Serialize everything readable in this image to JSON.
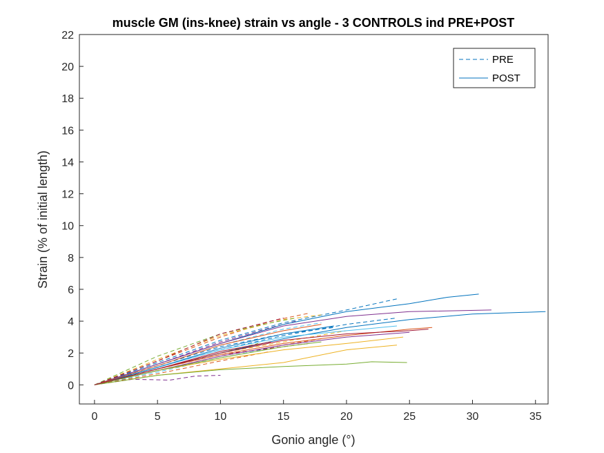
{
  "chart_data": {
    "type": "line",
    "title": "muscle GM (ins-knee) strain vs angle - 3 CONTROLS ind PRE+POST",
    "xlabel": "Gonio angle (°)",
    "ylabel": "Strain (% of initial length)",
    "xlim": [
      -1.2,
      36
    ],
    "ylim": [
      -1.2,
      22
    ],
    "xticks": [
      0,
      5,
      10,
      15,
      20,
      25,
      30,
      35
    ],
    "yticks": [
      0,
      2,
      4,
      6,
      8,
      10,
      12,
      14,
      16,
      18,
      20,
      22
    ],
    "grid": false,
    "legend": {
      "placement": "top-right",
      "entries": [
        {
          "label": "PRE",
          "style": "dashed",
          "color": "#0072BD"
        },
        {
          "label": "POST",
          "style": "solid",
          "color": "#0072BD"
        }
      ]
    },
    "series": [
      {
        "style": "dashed",
        "color": "#0072BD",
        "points": [
          [
            0,
            0
          ],
          [
            5,
            1.4
          ],
          [
            10,
            2.8
          ],
          [
            15,
            3.9
          ],
          [
            20,
            4.7
          ],
          [
            24,
            5.4
          ]
        ]
      },
      {
        "style": "dashed",
        "color": "#D95319",
        "points": [
          [
            0,
            0
          ],
          [
            5,
            1.5
          ],
          [
            10,
            3.0
          ],
          [
            14,
            4.0
          ],
          [
            17,
            4.5
          ]
        ]
      },
      {
        "style": "dashed",
        "color": "#EDB120",
        "points": [
          [
            0,
            0
          ],
          [
            5,
            1.6
          ],
          [
            10,
            3.1
          ],
          [
            15,
            4.1
          ],
          [
            18,
            4.4
          ]
        ]
      },
      {
        "style": "dashed",
        "color": "#7E2F8E",
        "points": [
          [
            0,
            0
          ],
          [
            5,
            1.3
          ],
          [
            10,
            2.7
          ],
          [
            14,
            3.6
          ],
          [
            16,
            4.0
          ]
        ]
      },
      {
        "style": "dashed",
        "color": "#77AC30",
        "points": [
          [
            0,
            0
          ],
          [
            5,
            1.8
          ],
          [
            10,
            3.2
          ],
          [
            14,
            3.9
          ],
          [
            16,
            4.2
          ]
        ]
      },
      {
        "style": "dashed",
        "color": "#4DBEEE",
        "points": [
          [
            0,
            0
          ],
          [
            5,
            1.2
          ],
          [
            10,
            2.5
          ],
          [
            15,
            3.5
          ],
          [
            18,
            3.9
          ]
        ]
      },
      {
        "style": "dashed",
        "color": "#A2142F",
        "points": [
          [
            0,
            0
          ],
          [
            5,
            1.5
          ],
          [
            10,
            3.2
          ],
          [
            13,
            3.8
          ],
          [
            15,
            4.2
          ]
        ]
      },
      {
        "style": "dashed",
        "color": "#0072BD",
        "points": [
          [
            0,
            0
          ],
          [
            5,
            1.1
          ],
          [
            10,
            2.2
          ],
          [
            15,
            3.1
          ],
          [
            20,
            3.8
          ],
          [
            24,
            4.2
          ]
        ]
      },
      {
        "style": "dashed",
        "color": "#D95319",
        "points": [
          [
            0,
            0
          ],
          [
            5,
            0.9
          ],
          [
            10,
            1.8
          ],
          [
            15,
            2.5
          ],
          [
            18,
            2.9
          ]
        ]
      },
      {
        "style": "dashed",
        "color": "#EDB120",
        "points": [
          [
            0,
            0
          ],
          [
            5,
            1.0
          ],
          [
            10,
            2.0
          ],
          [
            15,
            2.7
          ],
          [
            20,
            3.4
          ]
        ]
      },
      {
        "style": "dashed",
        "color": "#7E2F8E",
        "points": [
          [
            0,
            0
          ],
          [
            3,
            0.35
          ],
          [
            6,
            0.3
          ],
          [
            8,
            0.55
          ],
          [
            10,
            0.6
          ]
        ]
      },
      {
        "style": "dashed",
        "color": "#77AC30",
        "points": [
          [
            0,
            0
          ],
          [
            5,
            1.0
          ],
          [
            10,
            2.0
          ],
          [
            13,
            2.6
          ]
        ]
      },
      {
        "style": "dashed",
        "color": "#4DBEEE",
        "points": [
          [
            0,
            0
          ],
          [
            5,
            0.8
          ],
          [
            10,
            1.7
          ],
          [
            14,
            2.3
          ]
        ]
      },
      {
        "style": "dashed",
        "color": "#A2142F",
        "points": [
          [
            0,
            0
          ],
          [
            5,
            1.0
          ],
          [
            10,
            1.9
          ],
          [
            15,
            2.4
          ],
          [
            17,
            2.6
          ]
        ]
      },
      {
        "style": "dashed",
        "color": "#0072BD",
        "points": [
          [
            0,
            0
          ],
          [
            5,
            1.2
          ],
          [
            10,
            2.4
          ],
          [
            15,
            3.2
          ],
          [
            19,
            3.6
          ]
        ]
      },
      {
        "style": "dashed",
        "color": "#D95319",
        "points": [
          [
            0,
            0
          ],
          [
            5,
            0.7
          ],
          [
            10,
            1.5
          ],
          [
            14,
            2.1
          ]
        ]
      },
      {
        "style": "solid",
        "color": "#0072BD",
        "points": [
          [
            0,
            0
          ],
          [
            5,
            1.3
          ],
          [
            10,
            2.6
          ],
          [
            15,
            3.8
          ],
          [
            20,
            4.6
          ],
          [
            25,
            5.1
          ],
          [
            28,
            5.5
          ],
          [
            30.5,
            5.7
          ]
        ]
      },
      {
        "style": "solid",
        "color": "#0072BD",
        "points": [
          [
            0,
            0
          ],
          [
            5,
            1.0
          ],
          [
            10,
            2.0
          ],
          [
            15,
            2.9
          ],
          [
            20,
            3.6
          ],
          [
            25,
            4.1
          ],
          [
            30,
            4.45
          ],
          [
            35.8,
            4.6
          ]
        ]
      },
      {
        "style": "solid",
        "color": "#7E2F8E",
        "points": [
          [
            0,
            0
          ],
          [
            5,
            1.3
          ],
          [
            10,
            2.6
          ],
          [
            15,
            3.7
          ],
          [
            20,
            4.3
          ],
          [
            25,
            4.6
          ],
          [
            31.5,
            4.7
          ]
        ]
      },
      {
        "style": "solid",
        "color": "#D95319",
        "points": [
          [
            0,
            0
          ],
          [
            5,
            1.0
          ],
          [
            10,
            1.9
          ],
          [
            15,
            2.6
          ],
          [
            20,
            3.1
          ],
          [
            25,
            3.5
          ],
          [
            26.8,
            3.6
          ]
        ]
      },
      {
        "style": "solid",
        "color": "#A2142F",
        "points": [
          [
            0,
            0
          ],
          [
            5,
            1.0
          ],
          [
            10,
            2.0
          ],
          [
            15,
            2.8
          ],
          [
            20,
            3.2
          ],
          [
            25,
            3.4
          ],
          [
            26.5,
            3.5
          ]
        ]
      },
      {
        "style": "solid",
        "color": "#EDB120",
        "points": [
          [
            0,
            0
          ],
          [
            5,
            0.9
          ],
          [
            10,
            1.6
          ],
          [
            15,
            2.2
          ],
          [
            20,
            2.6
          ],
          [
            24.5,
            3.0
          ]
        ]
      },
      {
        "style": "solid",
        "color": "#EDB120",
        "points": [
          [
            0,
            0
          ],
          [
            5,
            0.6
          ],
          [
            10,
            1.0
          ],
          [
            15,
            1.4
          ],
          [
            20,
            2.2
          ],
          [
            24,
            2.5
          ]
        ]
      },
      {
        "style": "solid",
        "color": "#77AC30",
        "points": [
          [
            0,
            0
          ],
          [
            5,
            0.6
          ],
          [
            10,
            0.95
          ],
          [
            15,
            1.15
          ],
          [
            20,
            1.3
          ],
          [
            22,
            1.45
          ],
          [
            24.8,
            1.4
          ]
        ]
      },
      {
        "style": "solid",
        "color": "#4DBEEE",
        "points": [
          [
            0,
            0
          ],
          [
            5,
            1.1
          ],
          [
            10,
            2.2
          ],
          [
            15,
            3.0
          ],
          [
            20,
            3.4
          ],
          [
            24,
            3.7
          ]
        ]
      },
      {
        "style": "solid",
        "color": "#7E2F8E",
        "points": [
          [
            0,
            0
          ],
          [
            5,
            0.9
          ],
          [
            10,
            1.8
          ],
          [
            15,
            2.5
          ],
          [
            20,
            3.0
          ],
          [
            25,
            3.3
          ]
        ]
      },
      {
        "style": "solid",
        "color": "#0072BD",
        "points": [
          [
            0,
            0
          ],
          [
            5,
            1.1
          ],
          [
            10,
            2.3
          ],
          [
            15,
            3.2
          ],
          [
            19,
            3.7
          ]
        ]
      },
      {
        "style": "solid",
        "color": "#D95319",
        "points": [
          [
            0,
            0
          ],
          [
            5,
            1.2
          ],
          [
            10,
            2.5
          ],
          [
            15,
            3.4
          ],
          [
            18,
            3.8
          ]
        ]
      },
      {
        "style": "solid",
        "color": "#77AC30",
        "points": [
          [
            0,
            0
          ],
          [
            5,
            0.9
          ],
          [
            10,
            1.7
          ],
          [
            15,
            2.4
          ],
          [
            18,
            2.7
          ]
        ]
      },
      {
        "style": "solid",
        "color": "#A2142F",
        "points": [
          [
            0,
            0
          ],
          [
            5,
            1.0
          ],
          [
            10,
            2.1
          ],
          [
            14,
            2.7
          ]
        ]
      }
    ]
  }
}
